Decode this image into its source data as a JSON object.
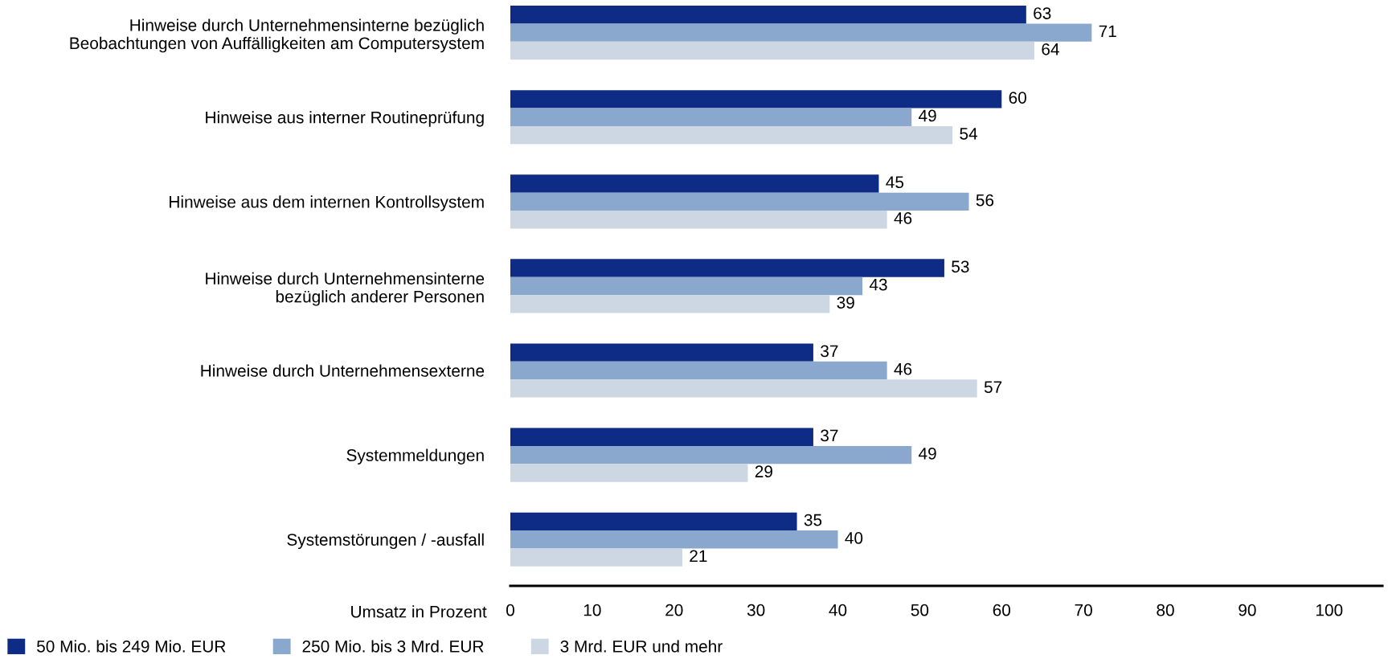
{
  "chart_data": {
    "type": "bar",
    "orientation": "horizontal",
    "categories": [
      "Hinweise durch Unternehmensinterne bezüglich\nBeobachtungen von Auffälligkeiten am Computersystem",
      "Hinweise aus interner Routineprüfung",
      "Hinweise aus dem internen Kontrollsystem",
      "Hinweise durch Unternehmensinterne\nbezüglich anderer Personen",
      "Hinweise durch Unternehmensexterne",
      "Systemmeldungen",
      "Systemstörungen / -ausfall"
    ],
    "series": [
      {
        "name": "50 Mio. bis 249 Mio. EUR",
        "color": "#0e2c86",
        "values": [
          63,
          60,
          45,
          53,
          37,
          37,
          35
        ]
      },
      {
        "name": "250 Mio. bis 3 Mrd. EUR",
        "color": "#8aa7cd",
        "values": [
          71,
          49,
          56,
          43,
          46,
          49,
          40
        ]
      },
      {
        "name": "3 Mrd. EUR und mehr",
        "color": "#cdd7e4",
        "values": [
          64,
          54,
          46,
          39,
          57,
          29,
          21
        ]
      }
    ],
    "xlabel": "Umsatz in Prozent",
    "xlim": [
      0,
      106.5
    ],
    "xticks": [
      0,
      10,
      20,
      30,
      40,
      50,
      60,
      70,
      80,
      90,
      100
    ],
    "data_labels": true,
    "legend": "bottom left"
  }
}
